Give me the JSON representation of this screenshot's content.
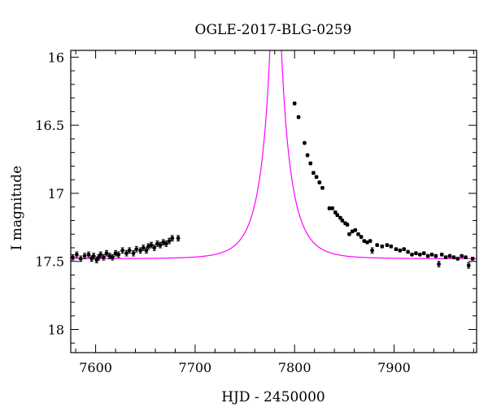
{
  "chart_data": {
    "type": "scatter",
    "title": "OGLE-2017-BLG-0259",
    "xlabel": "HJD - 2450000",
    "ylabel": "I magnitude",
    "xlim": [
      7575,
      7983
    ],
    "ylim": [
      18.17,
      15.95
    ],
    "y_inverted": true,
    "x_ticks": [
      7600,
      7700,
      7800,
      7900
    ],
    "x_tick_labels": [
      "7600",
      "7700",
      "7800",
      "7900"
    ],
    "y_ticks": [
      16,
      16.5,
      17,
      17.5,
      18
    ],
    "y_tick_labels": [
      "16",
      "16.5",
      "17",
      "17.5",
      "18"
    ],
    "grid": false,
    "legend": "none",
    "series": [
      {
        "kind": "observations",
        "color": "#000000",
        "points": [
          [
            7577,
            17.47,
            0.02
          ],
          [
            7581,
            17.45,
            0.02
          ],
          [
            7585,
            17.48,
            0.02
          ],
          [
            7589,
            17.46,
            0.02
          ],
          [
            7593,
            17.45,
            0.02
          ],
          [
            7596,
            17.48,
            0.02
          ],
          [
            7598,
            17.46,
            0.02
          ],
          [
            7601,
            17.49,
            0.02
          ],
          [
            7603,
            17.47,
            0.02
          ],
          [
            7605,
            17.45,
            0.02
          ],
          [
            7608,
            17.47,
            0.02
          ],
          [
            7611,
            17.44,
            0.02
          ],
          [
            7614,
            17.46,
            0.02
          ],
          [
            7617,
            17.47,
            0.02
          ],
          [
            7620,
            17.44,
            0.02
          ],
          [
            7623,
            17.45,
            0.02
          ],
          [
            7627,
            17.42,
            0.02
          ],
          [
            7631,
            17.44,
            0.02
          ],
          [
            7634,
            17.42,
            0.02
          ],
          [
            7638,
            17.44,
            0.02
          ],
          [
            7641,
            17.41,
            0.02
          ],
          [
            7645,
            17.42,
            0.02
          ],
          [
            7648,
            17.4,
            0.02
          ],
          [
            7651,
            17.42,
            0.02
          ],
          [
            7653,
            17.39,
            0.02
          ],
          [
            7656,
            17.38,
            0.02
          ],
          [
            7659,
            17.4,
            0.02
          ],
          [
            7662,
            17.37,
            0.02
          ],
          [
            7665,
            17.38,
            0.02
          ],
          [
            7668,
            17.36,
            0.02
          ],
          [
            7671,
            17.37,
            0.02
          ],
          [
            7674,
            17.35,
            0.02
          ],
          [
            7677,
            17.33,
            0.02
          ],
          [
            7683,
            17.33,
            0.02
          ],
          [
            7800,
            16.34,
            0.01
          ],
          [
            7804,
            16.44,
            0.01
          ],
          [
            7810,
            16.63,
            0.01
          ],
          [
            7813,
            16.72,
            0.01
          ],
          [
            7816,
            16.78,
            0.01
          ],
          [
            7819,
            16.85,
            0.01
          ],
          [
            7822,
            16.88,
            0.01
          ],
          [
            7825,
            16.92,
            0.01
          ],
          [
            7828,
            16.96,
            0.01
          ],
          [
            7835,
            17.11,
            0.01
          ],
          [
            7838,
            17.11,
            0.01
          ],
          [
            7841,
            17.14,
            0.01
          ],
          [
            7843,
            17.16,
            0.01
          ],
          [
            7846,
            17.18,
            0.01
          ],
          [
            7848,
            17.2,
            0.01
          ],
          [
            7851,
            17.22,
            0.01
          ],
          [
            7853,
            17.23,
            0.01
          ],
          [
            7855,
            17.3,
            0.01
          ],
          [
            7858,
            17.28,
            0.01
          ],
          [
            7861,
            17.27,
            0.01
          ],
          [
            7864,
            17.3,
            0.01
          ],
          [
            7867,
            17.32,
            0.01
          ],
          [
            7870,
            17.35,
            0.01
          ],
          [
            7873,
            17.36,
            0.01
          ],
          [
            7876,
            17.35,
            0.01
          ],
          [
            7878,
            17.42,
            0.02
          ],
          [
            7883,
            17.38,
            0.01
          ],
          [
            7888,
            17.39,
            0.01
          ],
          [
            7893,
            17.38,
            0.01
          ],
          [
            7897,
            17.39,
            0.01
          ],
          [
            7902,
            17.41,
            0.01
          ],
          [
            7906,
            17.42,
            0.01
          ],
          [
            7910,
            17.41,
            0.01
          ],
          [
            7914,
            17.43,
            0.01
          ],
          [
            7918,
            17.45,
            0.01
          ],
          [
            7922,
            17.44,
            0.01
          ],
          [
            7926,
            17.45,
            0.01
          ],
          [
            7930,
            17.44,
            0.01
          ],
          [
            7934,
            17.46,
            0.01
          ],
          [
            7938,
            17.45,
            0.01
          ],
          [
            7942,
            17.46,
            0.01
          ],
          [
            7945,
            17.52,
            0.02
          ],
          [
            7948,
            17.45,
            0.01
          ],
          [
            7952,
            17.47,
            0.01
          ],
          [
            7956,
            17.46,
            0.01
          ],
          [
            7960,
            17.47,
            0.01
          ],
          [
            7964,
            17.48,
            0.01
          ],
          [
            7968,
            17.46,
            0.01
          ],
          [
            7972,
            17.47,
            0.01
          ],
          [
            7975,
            17.53,
            0.02
          ],
          [
            7979,
            17.48,
            0.01
          ]
        ]
      },
      {
        "kind": "model",
        "color": "#ff00ff",
        "t0": 7781,
        "tE": 24,
        "u0": 0.055,
        "baseline_mag": 17.48
      }
    ]
  }
}
